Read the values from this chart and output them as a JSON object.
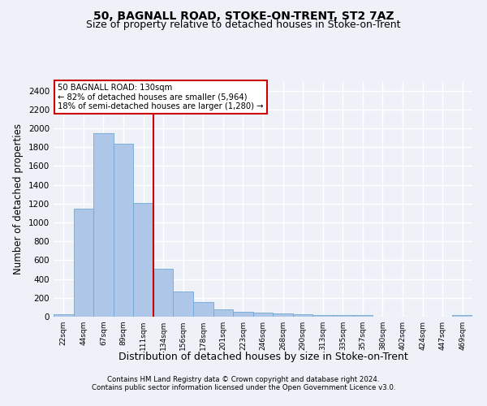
{
  "title1": "50, BAGNALL ROAD, STOKE-ON-TRENT, ST2 7AZ",
  "title2": "Size of property relative to detached houses in Stoke-on-Trent",
  "xlabel": "Distribution of detached houses by size in Stoke-on-Trent",
  "ylabel": "Number of detached properties",
  "categories": [
    "22sqm",
    "44sqm",
    "67sqm",
    "89sqm",
    "111sqm",
    "134sqm",
    "156sqm",
    "178sqm",
    "201sqm",
    "223sqm",
    "246sqm",
    "268sqm",
    "290sqm",
    "313sqm",
    "335sqm",
    "357sqm",
    "380sqm",
    "402sqm",
    "424sqm",
    "447sqm",
    "469sqm"
  ],
  "values": [
    30,
    1145,
    1950,
    1840,
    1205,
    510,
    265,
    155,
    80,
    50,
    42,
    35,
    22,
    20,
    14,
    20,
    0,
    0,
    0,
    0,
    18
  ],
  "bar_color": "#aec6e8",
  "bar_edgecolor": "#6fa8d4",
  "vline_x": 4.5,
  "vline_color": "#cc0000",
  "annotation_text": "50 BAGNALL ROAD: 130sqm\n← 82% of detached houses are smaller (5,964)\n18% of semi-detached houses are larger (1,280) →",
  "annotation_box_color": "#ffffff",
  "annotation_box_edgecolor": "#cc0000",
  "ylim": [
    0,
    2500
  ],
  "yticks": [
    0,
    200,
    400,
    600,
    800,
    1000,
    1200,
    1400,
    1600,
    1800,
    2000,
    2200,
    2400
  ],
  "footer1": "Contains HM Land Registry data © Crown copyright and database right 2024.",
  "footer2": "Contains public sector information licensed under the Open Government Licence v3.0.",
  "bg_color": "#eef2f8",
  "plot_bg_color": "#eef2f8",
  "grid_color": "#ffffff",
  "title1_fontsize": 10,
  "title2_fontsize": 9,
  "xlabel_fontsize": 9,
  "ylabel_fontsize": 8.5
}
